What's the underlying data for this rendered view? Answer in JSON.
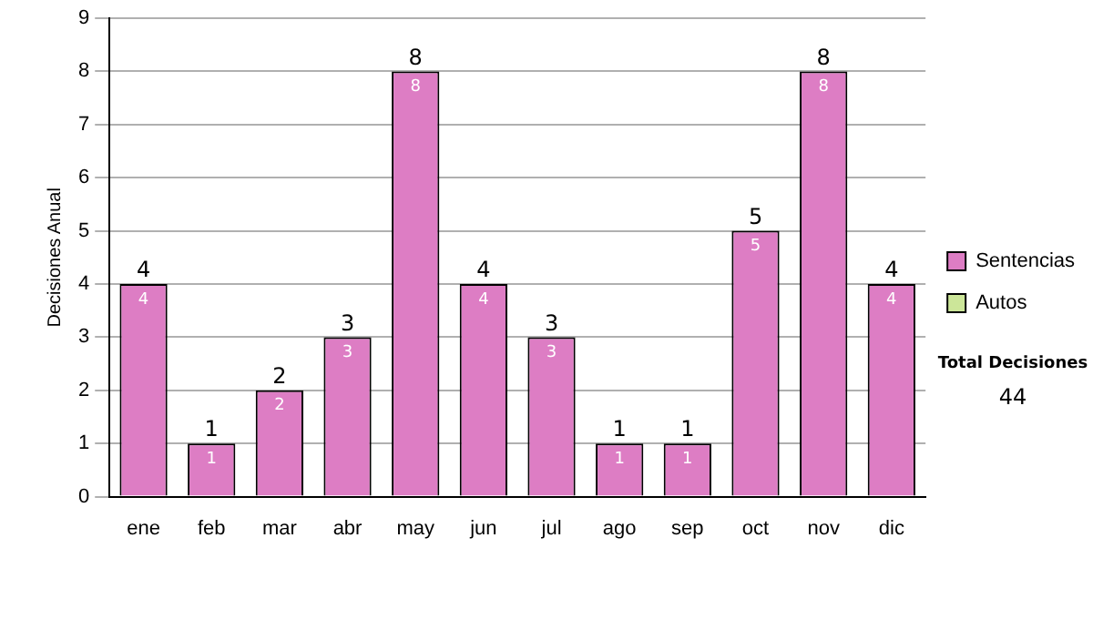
{
  "chart_data": {
    "type": "bar",
    "ylabel": "Decisiones Anual",
    "categories": [
      "ene",
      "feb",
      "mar",
      "abr",
      "may",
      "jun",
      "jul",
      "ago",
      "sep",
      "oct",
      "nov",
      "dic"
    ],
    "series": [
      {
        "name": "Sentencias",
        "color": "#dd7dc4",
        "values": [
          4,
          1,
          2,
          3,
          8,
          4,
          3,
          1,
          1,
          5,
          8,
          4
        ],
        "value_labels": [
          "4",
          "1",
          "2",
          "3",
          "8",
          "4",
          "3",
          "1",
          "1",
          "5",
          "8",
          "4"
        ]
      },
      {
        "name": "Autos",
        "color": "#cce699",
        "values": [
          0,
          0,
          0,
          0,
          0,
          0,
          0,
          0,
          0,
          0,
          0,
          0
        ]
      }
    ],
    "stacked": true,
    "totals": [
      "4",
      "1",
      "2",
      "3",
      "8",
      "4",
      "3",
      "1",
      "1",
      "5",
      "8",
      "4"
    ],
    "ylim": [
      0,
      9
    ],
    "yticks": [
      0,
      1,
      2,
      3,
      4,
      5,
      6,
      7,
      8,
      9
    ],
    "grid": "y",
    "legend": "right",
    "annotations": [
      "Total Decisiones",
      "44"
    ]
  }
}
